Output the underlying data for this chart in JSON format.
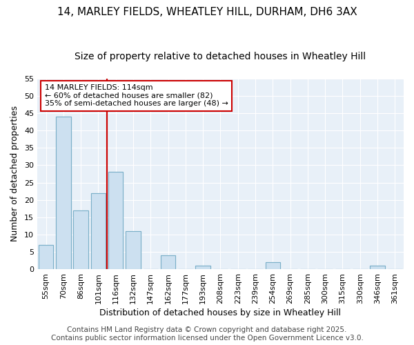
{
  "title1": "14, MARLEY FIELDS, WHEATLEY HILL, DURHAM, DH6 3AX",
  "title2": "Size of property relative to detached houses in Wheatley Hill",
  "xlabel": "Distribution of detached houses by size in Wheatley Hill",
  "ylabel": "Number of detached properties",
  "categories": [
    "55sqm",
    "70sqm",
    "86sqm",
    "101sqm",
    "116sqm",
    "132sqm",
    "147sqm",
    "162sqm",
    "177sqm",
    "193sqm",
    "208sqm",
    "223sqm",
    "239sqm",
    "254sqm",
    "269sqm",
    "285sqm",
    "300sqm",
    "315sqm",
    "330sqm",
    "346sqm",
    "361sqm"
  ],
  "values": [
    7,
    44,
    17,
    22,
    28,
    11,
    0,
    4,
    0,
    1,
    0,
    0,
    0,
    2,
    0,
    0,
    0,
    0,
    0,
    1,
    0
  ],
  "bar_color": "#cce0f0",
  "bar_edge_color": "#7aafc8",
  "vline_index": 4,
  "vline_color": "#cc0000",
  "ylim": [
    0,
    55
  ],
  "yticks": [
    0,
    5,
    10,
    15,
    20,
    25,
    30,
    35,
    40,
    45,
    50,
    55
  ],
  "annotation_text": "14 MARLEY FIELDS: 114sqm\n← 60% of detached houses are smaller (82)\n35% of semi-detached houses are larger (48) →",
  "annotation_box_facecolor": "#ffffff",
  "annotation_box_edgecolor": "#cc0000",
  "footer_text": "Contains HM Land Registry data © Crown copyright and database right 2025.\nContains public sector information licensed under the Open Government Licence v3.0.",
  "background_color": "#ffffff",
  "plot_bg_color": "#e8f0f8",
  "grid_color": "#ffffff",
  "title1_fontsize": 11,
  "title2_fontsize": 10,
  "xlabel_fontsize": 9,
  "ylabel_fontsize": 9,
  "tick_fontsize": 8,
  "annotation_fontsize": 8,
  "footer_fontsize": 7.5
}
